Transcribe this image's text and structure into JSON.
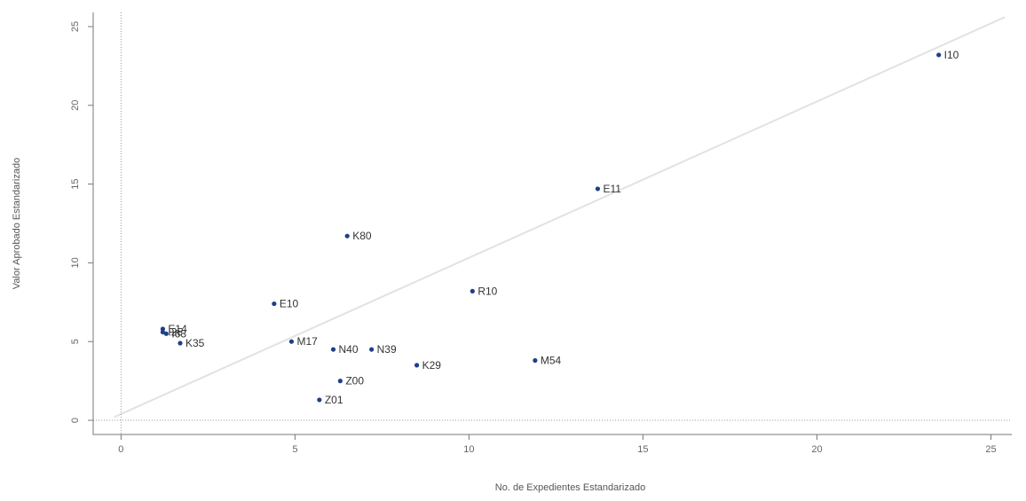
{
  "chart_data": {
    "type": "scatter",
    "xlabel": "No. de Expedientes Estandarizado",
    "ylabel": "Valor Aprobado Estandarizado",
    "xlim": [
      -0.8,
      25.6
    ],
    "ylim": [
      -0.9,
      25.9
    ],
    "xticks": [
      0,
      5,
      10,
      15,
      20,
      25
    ],
    "yticks": [
      0,
      5,
      10,
      15,
      20,
      25
    ],
    "ref_lines": {
      "x": 0,
      "y": 0
    },
    "trend_line": {
      "x": [
        -0.2,
        25.4
      ],
      "y": [
        0.2,
        25.6
      ]
    },
    "points": [
      {
        "label": "I10",
        "x": 23.5,
        "y": 23.2
      },
      {
        "label": "E11",
        "x": 13.7,
        "y": 14.7
      },
      {
        "label": "K80",
        "x": 6.5,
        "y": 11.7
      },
      {
        "label": "R10",
        "x": 10.1,
        "y": 8.2
      },
      {
        "label": "E10",
        "x": 4.4,
        "y": 7.4
      },
      {
        "label": "M17",
        "x": 4.9,
        "y": 5.0
      },
      {
        "label": "N40",
        "x": 6.1,
        "y": 4.5
      },
      {
        "label": "N39",
        "x": 7.2,
        "y": 4.5
      },
      {
        "label": "K29",
        "x": 8.5,
        "y": 3.5
      },
      {
        "label": "M54",
        "x": 11.9,
        "y": 3.8
      },
      {
        "label": "Z00",
        "x": 6.3,
        "y": 2.5
      },
      {
        "label": "Z01",
        "x": 5.7,
        "y": 1.3
      },
      {
        "label": "K35",
        "x": 1.7,
        "y": 4.9
      },
      {
        "label": "E14",
        "x": 1.2,
        "y": 5.8
      },
      {
        "label": "I63",
        "x": 1.3,
        "y": 5.5
      },
      {
        "label": "I25",
        "x": 1.2,
        "y": 5.6
      }
    ]
  }
}
